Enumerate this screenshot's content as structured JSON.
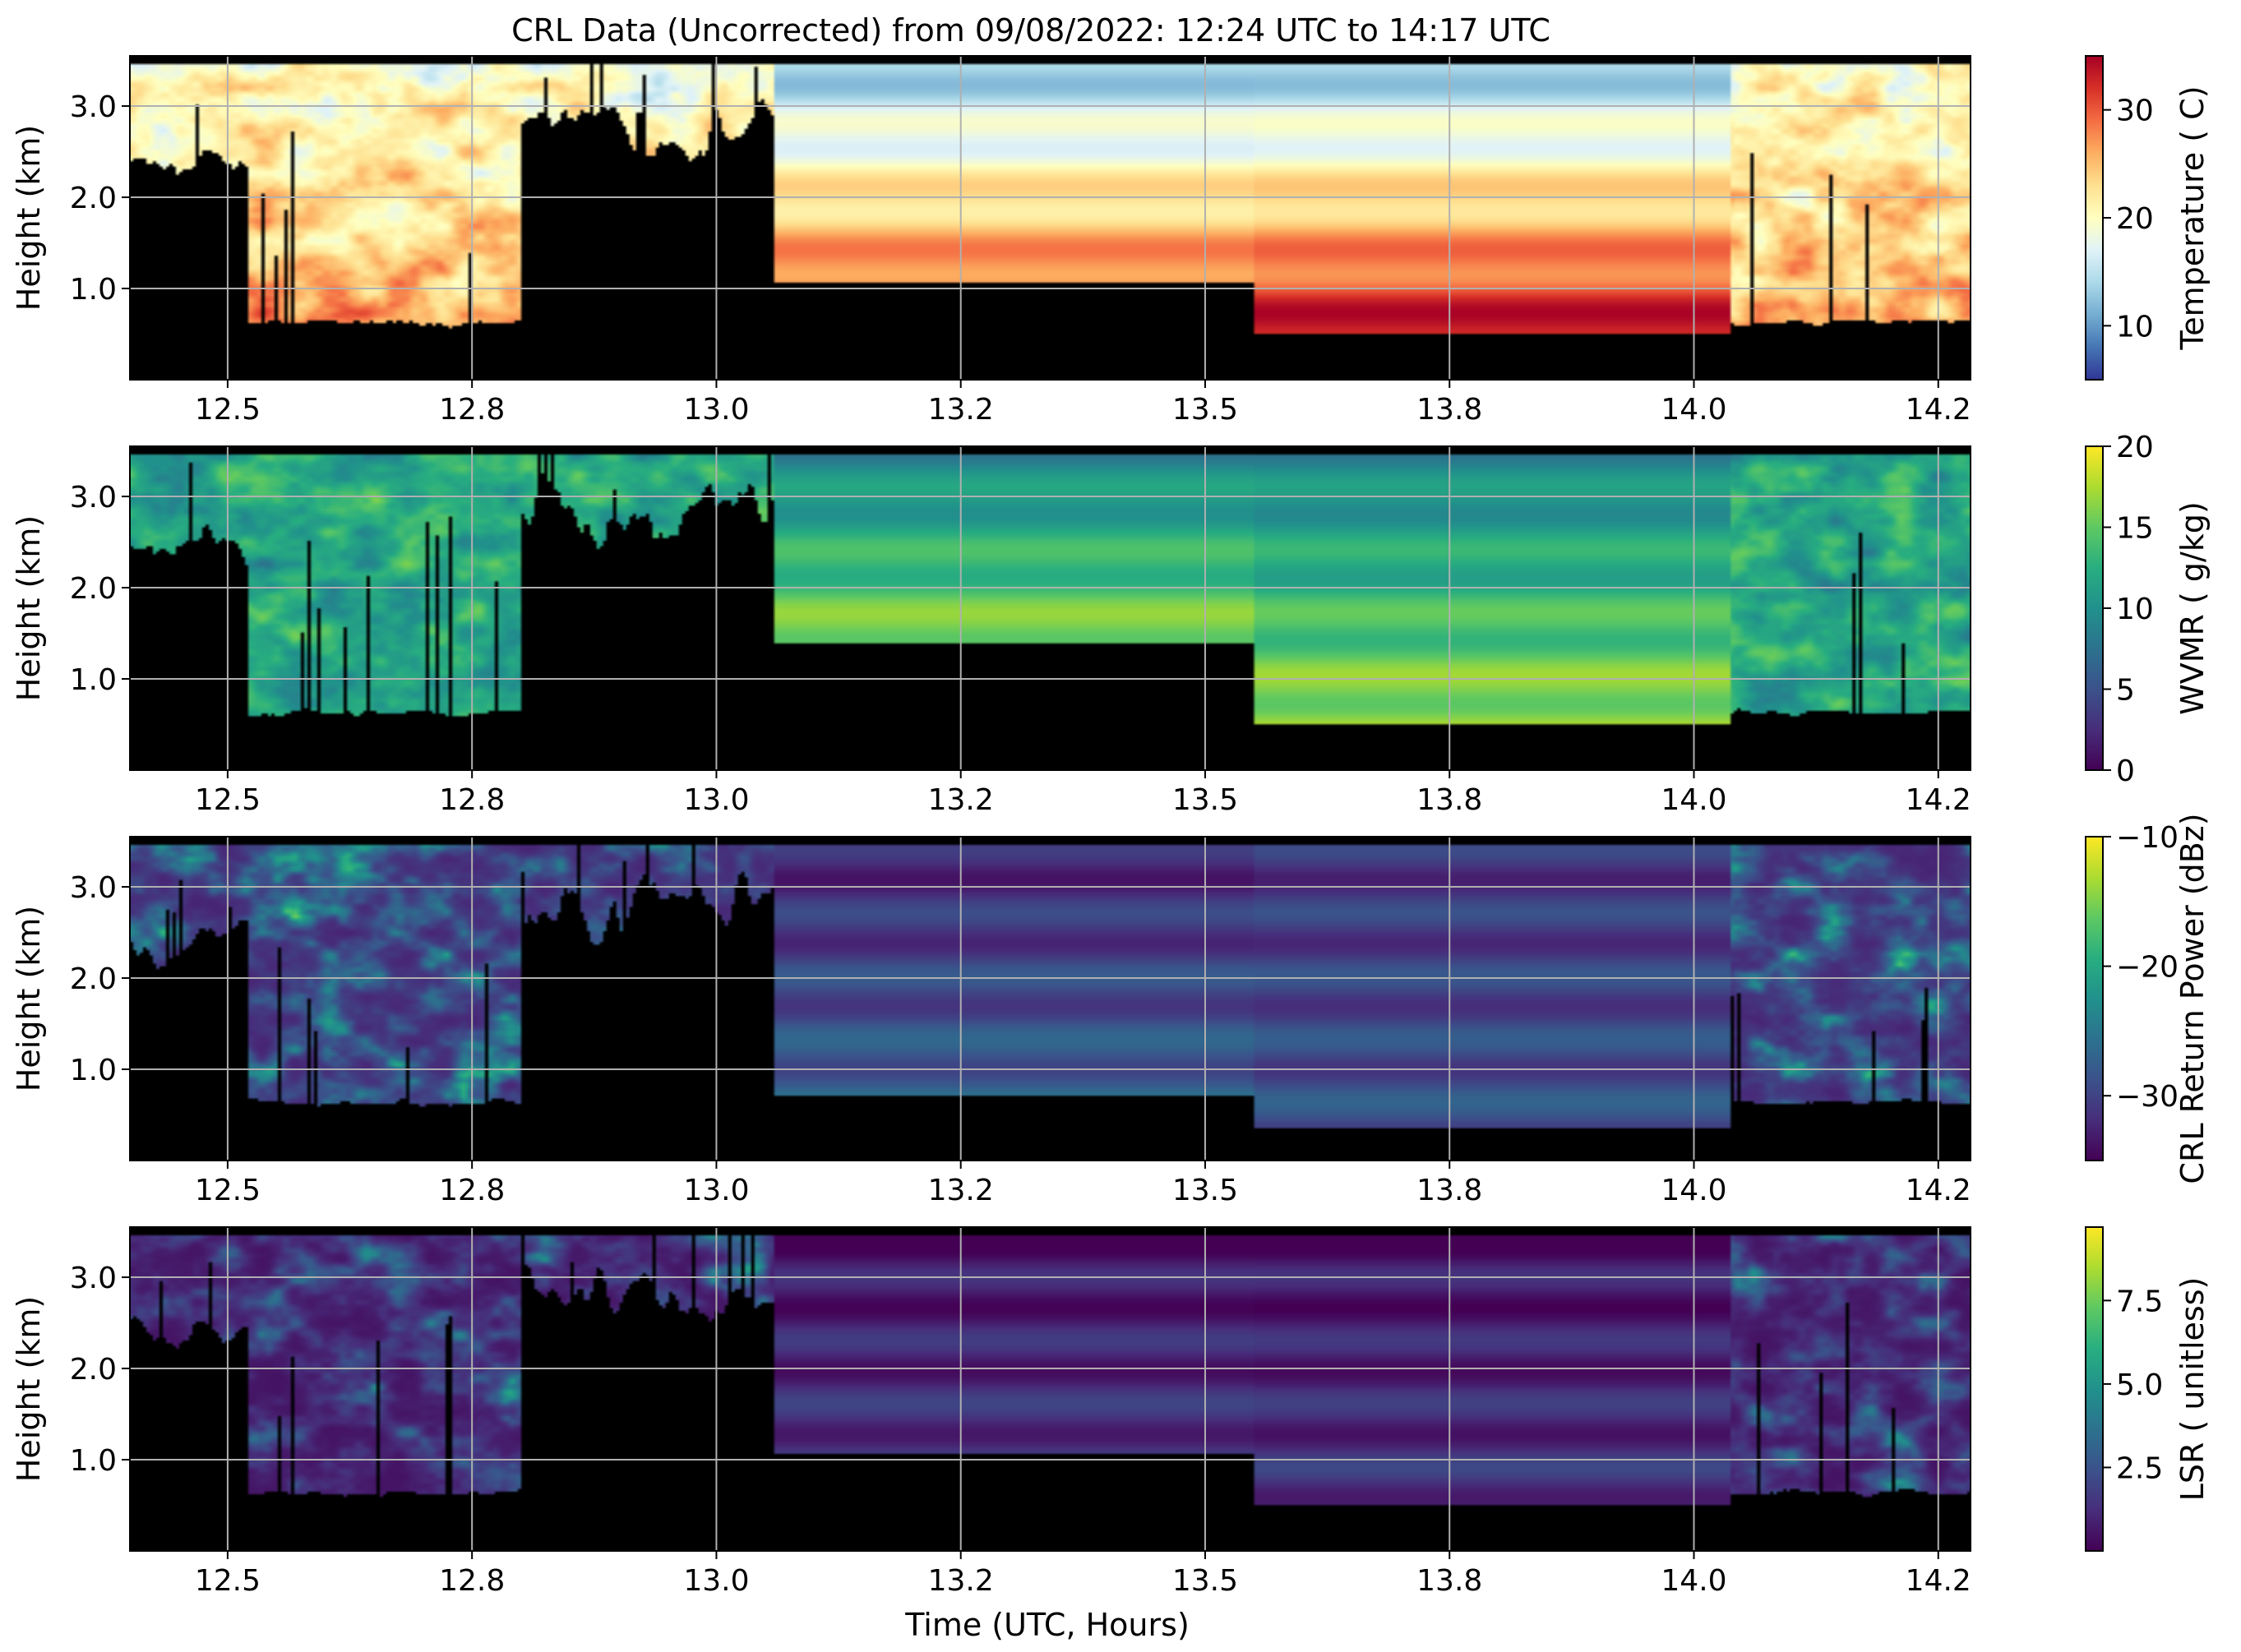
{
  "figure": {
    "title": "CRL Data (Uncorrected) from 09/08/2022: 12:24 UTC to 14:17 UTC",
    "xlabel": "Time (UTC, Hours)"
  },
  "chart_data": [
    {
      "type": "heatmap",
      "field": "temperature",
      "ylabel": "Height (km)",
      "xlim": [
        12.4,
        14.283
      ],
      "ylim": [
        0.0,
        3.55
      ],
      "xticks": [
        12.5,
        12.75,
        13.0,
        13.25,
        13.5,
        13.75,
        14.0,
        14.25
      ],
      "xtick_labels": [
        "12.5",
        "12.8",
        "13.0",
        "13.2",
        "13.5",
        "13.8",
        "14.0",
        "14.2"
      ],
      "yticks": [
        1.0,
        2.0,
        3.0
      ],
      "ytick_labels": [
        "1.0",
        "2.0",
        "3.0"
      ],
      "grid": true,
      "colorbar": {
        "label": "Temperature ( C)",
        "colormap": "RdYlBu_r",
        "vmin": 5,
        "vmax": 35,
        "ticks": [
          10,
          20,
          30
        ],
        "tick_labels": [
          "10",
          "20",
          "30"
        ]
      },
      "gap_fill_segments": [
        {
          "x_start": 13.06,
          "x_end": 13.55,
          "data_floor_km": 1.05,
          "profile_top": 0.25,
          "profile_bottom": 0.8
        },
        {
          "x_start": 13.55,
          "x_end": 14.04,
          "data_floor_km": 0.5,
          "profile_top": 0.25,
          "profile_bottom": 0.97
        }
      ]
    },
    {
      "type": "heatmap",
      "field": "wvmr",
      "ylabel": "Height (km)",
      "xlim": [
        12.4,
        14.283
      ],
      "ylim": [
        0.0,
        3.55
      ],
      "xticks": [
        12.5,
        12.75,
        13.0,
        13.25,
        13.5,
        13.75,
        14.0,
        14.25
      ],
      "xtick_labels": [
        "12.5",
        "12.8",
        "13.0",
        "13.2",
        "13.5",
        "13.8",
        "14.0",
        "14.2"
      ],
      "yticks": [
        1.0,
        2.0,
        3.0
      ],
      "ytick_labels": [
        "1.0",
        "2.0",
        "3.0"
      ],
      "grid": true,
      "colorbar": {
        "label": "WVMR ( g/kg)",
        "colormap": "viridis",
        "vmin": 0,
        "vmax": 20,
        "ticks": [
          0,
          5,
          10,
          15,
          20
        ],
        "tick_labels": [
          "0",
          "5",
          "10",
          "15",
          "20"
        ]
      },
      "gap_fill_segments": [
        {
          "x_start": 13.06,
          "x_end": 13.55,
          "data_floor_km": 1.4,
          "profile_top": 0.45,
          "profile_bottom": 0.82
        },
        {
          "x_start": 13.55,
          "x_end": 14.04,
          "data_floor_km": 0.5,
          "profile_top": 0.45,
          "profile_bottom": 0.85
        }
      ]
    },
    {
      "type": "heatmap",
      "field": "return_power",
      "ylabel": "Height (km)",
      "xlim": [
        12.4,
        14.283
      ],
      "ylim": [
        0.0,
        3.55
      ],
      "xticks": [
        12.5,
        12.75,
        13.0,
        13.25,
        13.5,
        13.75,
        14.0,
        14.25
      ],
      "xtick_labels": [
        "12.5",
        "12.8",
        "13.0",
        "13.2",
        "13.5",
        "13.8",
        "14.0",
        "14.2"
      ],
      "yticks": [
        1.0,
        2.0,
        3.0
      ],
      "ytick_labels": [
        "1.0",
        "2.0",
        "3.0"
      ],
      "grid": true,
      "colorbar": {
        "label": "CRL Return Power (dBz)",
        "colormap": "viridis",
        "vmin": -35,
        "vmax": -10,
        "ticks": [
          -30,
          -20,
          -10
        ],
        "tick_labels": [
          "−30",
          "−20",
          "−10"
        ]
      },
      "gap_fill_segments": [
        {
          "x_start": 13.06,
          "x_end": 13.55,
          "data_floor_km": 0.7,
          "profile_top": 0.1,
          "profile_bottom": 0.3
        },
        {
          "x_start": 13.55,
          "x_end": 14.04,
          "data_floor_km": 0.35,
          "profile_top": 0.15,
          "profile_bottom": 0.25
        }
      ]
    },
    {
      "type": "heatmap",
      "field": "lsr",
      "ylabel": "Height (km)",
      "xlim": [
        12.4,
        14.283
      ],
      "ylim": [
        0.0,
        3.55
      ],
      "xticks": [
        12.5,
        12.75,
        13.0,
        13.25,
        13.5,
        13.75,
        14.0,
        14.25
      ],
      "xtick_labels": [
        "12.5",
        "12.8",
        "13.0",
        "13.2",
        "13.5",
        "13.8",
        "14.0",
        "14.2"
      ],
      "yticks": [
        1.0,
        2.0,
        3.0
      ],
      "ytick_labels": [
        "1.0",
        "2.0",
        "3.0"
      ],
      "grid": true,
      "colorbar": {
        "label": "LSR ( unitless)",
        "colormap": "viridis",
        "vmin": 0,
        "vmax": 9.7,
        "ticks": [
          2.5,
          5.0,
          7.5
        ],
        "tick_labels": [
          "2.5",
          "5.0",
          "7.5"
        ]
      },
      "gap_fill_segments": [
        {
          "x_start": 13.06,
          "x_end": 13.55,
          "data_floor_km": 1.05,
          "profile_top": 0.05,
          "profile_bottom": 0.15
        },
        {
          "x_start": 13.55,
          "x_end": 14.04,
          "data_floor_km": 0.5,
          "profile_top": 0.05,
          "profile_bottom": 0.15
        }
      ]
    }
  ]
}
